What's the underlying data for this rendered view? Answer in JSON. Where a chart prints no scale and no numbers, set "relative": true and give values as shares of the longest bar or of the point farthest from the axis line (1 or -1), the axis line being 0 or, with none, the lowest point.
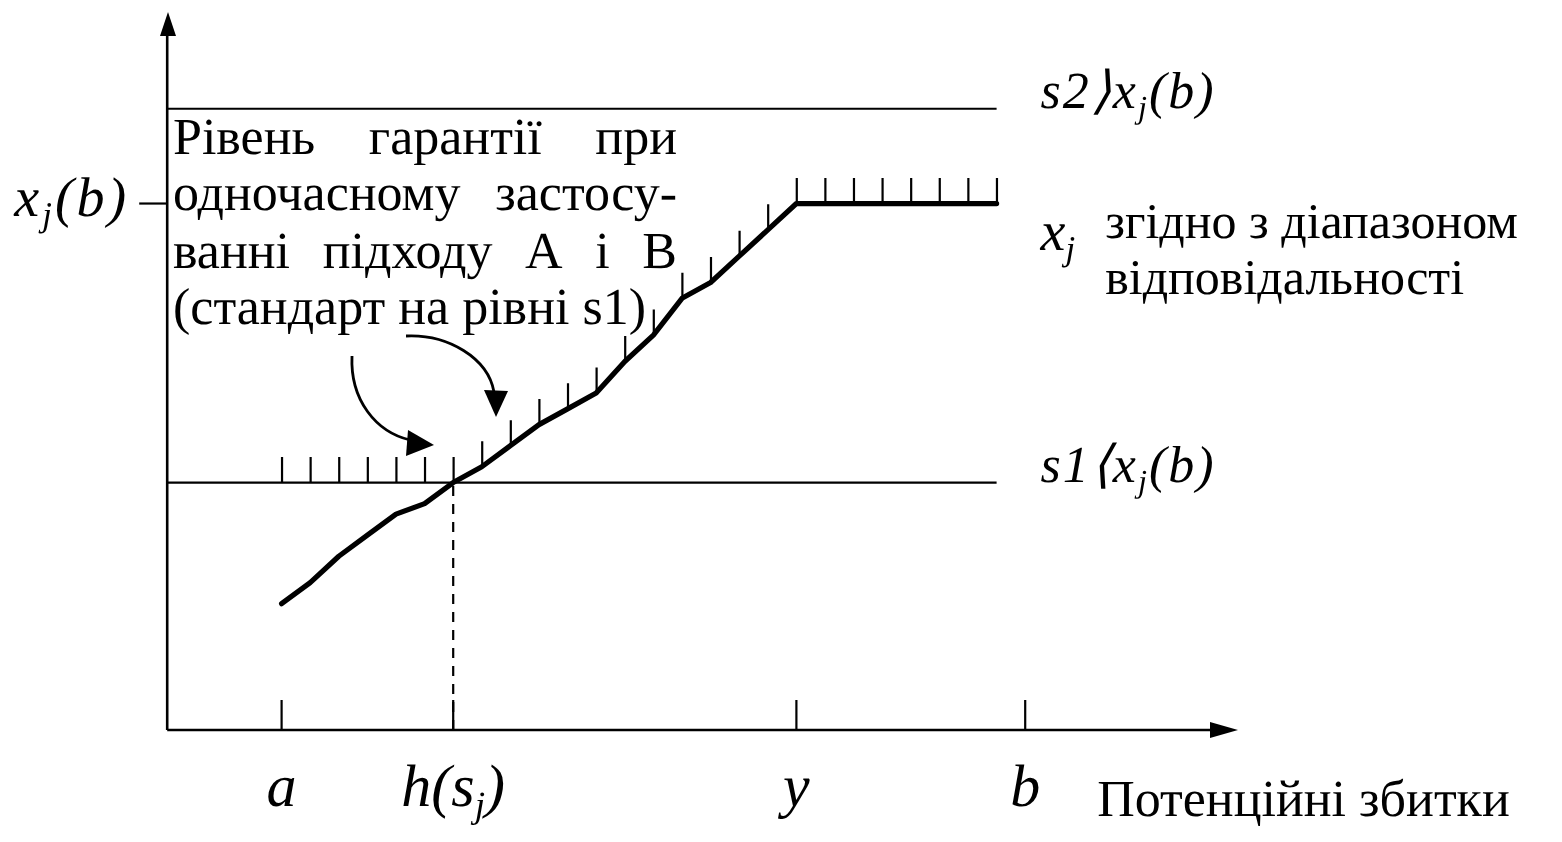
{
  "chart_data": {
    "type": "line",
    "relative": true,
    "xlabel": "Потенційні збитки",
    "categories": [
      null,
      null,
      null,
      null,
      "a",
      null,
      null,
      null,
      null,
      null,
      "h(s$_{j}$)",
      null,
      null,
      null,
      null,
      null,
      null,
      null,
      null,
      null,
      null,
      null,
      "y",
      null,
      null,
      null,
      null,
      null,
      null,
      null,
      "b"
    ],
    "series": [
      {
        "name": "x$_{j}$ згідно з діапазоном відповідальності",
        "color": "#000000",
        "values": [
          null,
          null,
          null,
          null,
          0.24,
          0.28,
          0.33,
          0.37,
          0.41,
          0.43,
          0.47,
          0.5,
          0.54,
          0.58,
          0.61,
          0.64,
          0.7,
          0.75,
          0.82,
          0.85,
          0.9,
          0.95,
          1,
          1,
          1,
          1,
          1,
          1,
          1,
          1,
          null
        ]
      }
    ],
    "ref_lines": [
      {
        "axis": "y",
        "value": 1.18,
        "label": "s2⟩x$_{j}$(b)"
      },
      {
        "axis": "y",
        "value": 0.47,
        "label": "s1⟨x$_{j}$(b)"
      },
      {
        "axis": "x",
        "value": "h(s$_{j}$)",
        "line_style": "dashed"
      }
    ],
    "annotations": [
      "Рівень гарантії при\nодночасному застосу-\nванні підходу А і В\n(стандарт на рівні s1)",
      "x$_{j}$(b)"
    ]
  }
}
